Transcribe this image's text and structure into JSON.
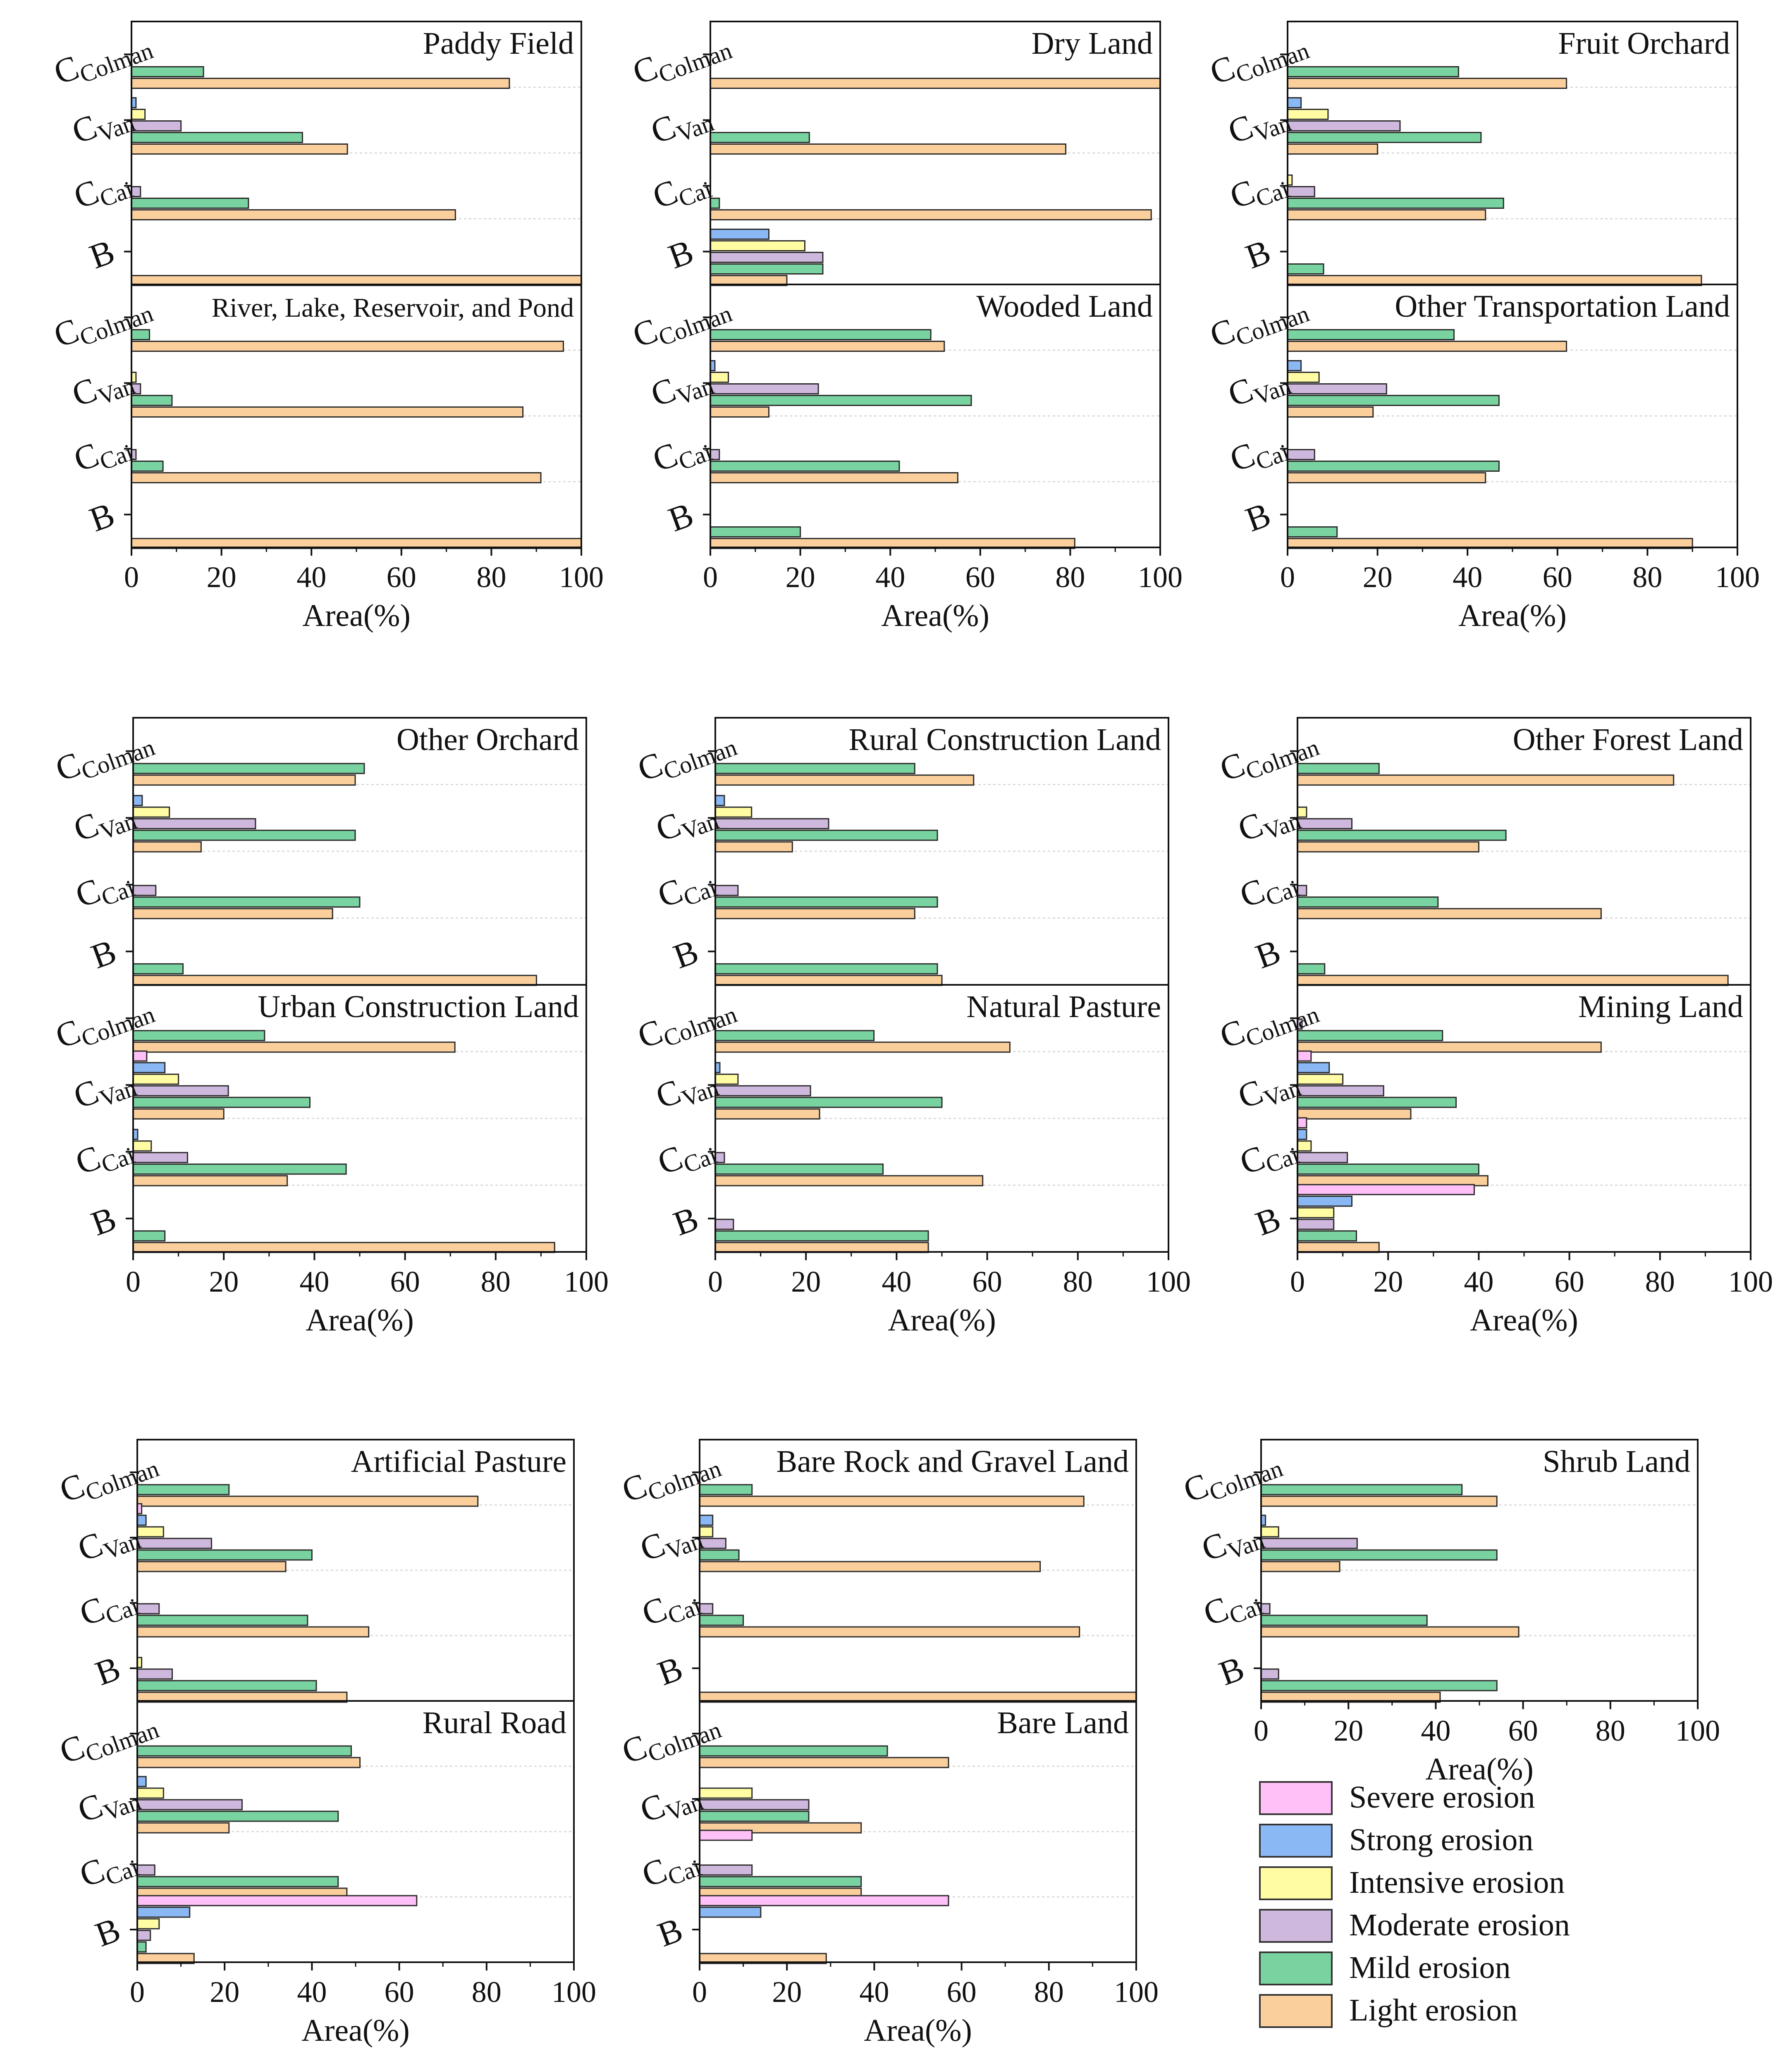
{
  "axis": {
    "xlabel": "Area(%)",
    "ticks": [
      "0",
      "20",
      "40",
      "60",
      "80",
      "100"
    ],
    "xlim": [
      0,
      100
    ]
  },
  "legend": {
    "items": [
      {
        "label": "Severe erosion",
        "color": "#ffbff7"
      },
      {
        "label": "Strong erosion",
        "color": "#8ab8f5"
      },
      {
        "label": "Intensive erosion",
        "color": "#fffca4"
      },
      {
        "label": "Moderate erosion",
        "color": "#cfb8dd"
      },
      {
        "label": "Mild erosion",
        "color": "#79d3a0"
      },
      {
        "label": "Light erosion",
        "color": "#fbcf9c"
      }
    ]
  },
  "chart_data": {
    "type": "bar",
    "orientation": "horizontal",
    "series": [
      "Severe erosion",
      "Strong erosion",
      "Intensive erosion",
      "Moderate erosion",
      "Mild erosion",
      "Light erosion"
    ],
    "categories": [
      {
        "main": "C",
        "sub": "Colman"
      },
      {
        "main": "C",
        "sub": "Van"
      },
      {
        "main": "C",
        "sub": "Cai"
      },
      {
        "main": "B",
        "sub": ""
      }
    ],
    "xlabel": "Area(%)",
    "xlim": [
      0,
      100
    ],
    "panels": [
      {
        "title": "Paddy Field",
        "values": [
          [
            0,
            0,
            0,
            0,
            16,
            84
          ],
          [
            0,
            1,
            3,
            11,
            38,
            48
          ],
          [
            0,
            0,
            0,
            2,
            26,
            72
          ],
          [
            0,
            0,
            0,
            0,
            0,
            100
          ]
        ]
      },
      {
        "title": "River, Lake, Reservoir, and Pond",
        "values": [
          [
            0,
            0,
            0,
            0,
            4,
            96
          ],
          [
            0,
            0,
            1,
            2,
            9,
            87
          ],
          [
            0,
            0,
            0,
            1,
            7,
            91
          ],
          [
            0,
            0,
            0,
            0,
            0,
            100
          ]
        ]
      },
      {
        "title": "Dry Land",
        "values": [
          [
            0,
            0,
            0,
            0,
            0,
            100
          ],
          [
            0,
            0,
            0,
            0,
            22,
            79
          ],
          [
            0,
            0,
            0,
            0,
            2,
            98
          ],
          [
            0,
            13,
            21,
            25,
            25,
            17
          ]
        ]
      },
      {
        "title": "Wooded Land",
        "values": [
          [
            0,
            0,
            0,
            0,
            49,
            52
          ],
          [
            0,
            1,
            4,
            24,
            58,
            13
          ],
          [
            0,
            0,
            0,
            2,
            42,
            55
          ],
          [
            0,
            0,
            0,
            0,
            20,
            81
          ]
        ]
      },
      {
        "title": "Fruit Orchard",
        "values": [
          [
            0,
            0,
            0,
            0,
            38,
            62
          ],
          [
            0,
            3,
            9,
            25,
            43,
            20
          ],
          [
            0,
            0,
            1,
            6,
            48,
            44
          ],
          [
            0,
            0,
            0,
            0,
            8,
            92
          ]
        ]
      },
      {
        "title": "Other Transportation Land",
        "values": [
          [
            0,
            0,
            0,
            0,
            37,
            62
          ],
          [
            0,
            3,
            7,
            22,
            47,
            19
          ],
          [
            0,
            0,
            0,
            6,
            47,
            44
          ],
          [
            0,
            0,
            0,
            0,
            11,
            90
          ]
        ]
      },
      {
        "title": "Other Orchard",
        "values": [
          [
            0,
            0,
            0,
            0,
            51,
            49
          ],
          [
            0,
            2,
            8,
            27,
            49,
            15
          ],
          [
            0,
            0,
            0,
            5,
            50,
            44
          ],
          [
            0,
            0,
            0,
            0,
            11,
            89
          ]
        ]
      },
      {
        "title": "Urban Construction Land",
        "values": [
          [
            0,
            0,
            0,
            0,
            29,
            71
          ],
          [
            3,
            7,
            10,
            21,
            39,
            20
          ],
          [
            0,
            1,
            4,
            12,
            47,
            34
          ],
          [
            0,
            0,
            0,
            0,
            7,
            93
          ]
        ]
      },
      {
        "title": "Rural Construction Land",
        "values": [
          [
            0,
            0,
            0,
            0,
            44,
            57
          ],
          [
            0,
            2,
            8,
            25,
            49,
            17
          ],
          [
            0,
            0,
            0,
            5,
            49,
            44
          ],
          [
            0,
            0,
            0,
            0,
            49,
            50
          ]
        ]
      },
      {
        "title": "Natural Pasture",
        "values": [
          [
            0,
            0,
            0,
            0,
            35,
            65
          ],
          [
            0,
            1,
            5,
            21,
            50,
            23
          ],
          [
            0,
            0,
            0,
            2,
            37,
            59
          ],
          [
            0,
            0,
            0,
            4,
            47,
            47
          ]
        ]
      },
      {
        "title": "Other Forest Land",
        "values": [
          [
            0,
            0,
            0,
            0,
            18,
            83
          ],
          [
            0,
            0,
            2,
            12,
            46,
            40
          ],
          [
            0,
            0,
            0,
            2,
            31,
            67
          ],
          [
            0,
            0,
            0,
            0,
            6,
            95
          ]
        ]
      },
      {
        "title": "Mining Land",
        "values": [
          [
            0,
            0,
            0,
            1,
            32,
            67
          ],
          [
            3,
            7,
            10,
            19,
            35,
            25
          ],
          [
            2,
            2,
            3,
            11,
            40,
            42
          ],
          [
            39,
            12,
            8,
            8,
            13,
            18
          ]
        ]
      },
      {
        "title": "Artificial Pasture",
        "values": [
          [
            0,
            0,
            0,
            0,
            21,
            78
          ],
          [
            1,
            2,
            6,
            17,
            40,
            34
          ],
          [
            0,
            0,
            0,
            5,
            39,
            53
          ],
          [
            0,
            0,
            1,
            8,
            41,
            48
          ]
        ]
      },
      {
        "title": "Rural Road",
        "values": [
          [
            0,
            0,
            0,
            0,
            49,
            51
          ],
          [
            0,
            2,
            6,
            24,
            46,
            21
          ],
          [
            0,
            0,
            0,
            4,
            46,
            48
          ],
          [
            64,
            12,
            5,
            3,
            2,
            13
          ]
        ]
      },
      {
        "title": "Bare Rock and Gravel Land",
        "values": [
          [
            0,
            0,
            0,
            0,
            12,
            88
          ],
          [
            0,
            3,
            3,
            6,
            9,
            78
          ],
          [
            0,
            0,
            0,
            3,
            10,
            87
          ],
          [
            0,
            0,
            0,
            0,
            0,
            100
          ]
        ]
      },
      {
        "title": "Bare Land",
        "values": [
          [
            0,
            0,
            0,
            0,
            43,
            57
          ],
          [
            0,
            0,
            12,
            25,
            25,
            37
          ],
          [
            12,
            0,
            0,
            12,
            37,
            37
          ],
          [
            57,
            14,
            0,
            0,
            0,
            29
          ]
        ]
      },
      {
        "title": "Shrub Land",
        "values": [
          [
            0,
            0,
            0,
            0,
            46,
            54
          ],
          [
            0,
            1,
            4,
            22,
            54,
            18
          ],
          [
            0,
            0,
            0,
            2,
            38,
            59
          ],
          [
            0,
            0,
            0,
            4,
            54,
            41
          ]
        ]
      }
    ]
  }
}
